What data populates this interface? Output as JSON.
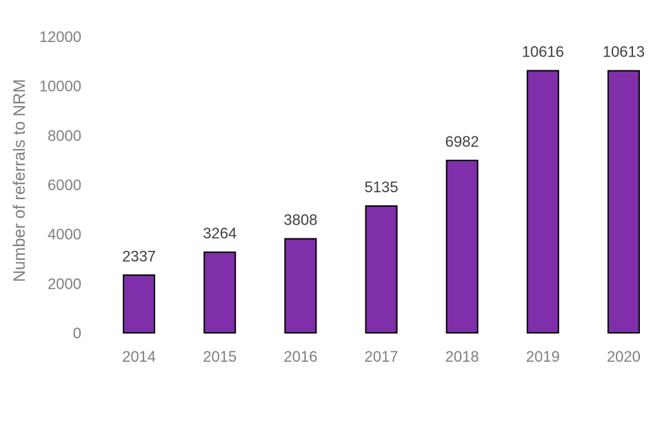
{
  "chart_data": {
    "type": "bar",
    "categories": [
      "2014",
      "2015",
      "2016",
      "2017",
      "2018",
      "2019",
      "2020"
    ],
    "values": [
      2337,
      3264,
      3808,
      5135,
      6982,
      10616,
      10613
    ],
    "data_labels": [
      "2337",
      "3264",
      "3808",
      "5135",
      "6982",
      "10616",
      "10613"
    ],
    "ylabel": "Number of referrals to NRM",
    "ylim": [
      0,
      12000
    ],
    "yticks": [
      "0",
      "2000",
      "4000",
      "6000",
      "8000",
      "10000",
      "12000"
    ],
    "grid": false,
    "legend": "none",
    "colors": {
      "bar_fill": "#7f2fa9",
      "bar_stroke": "#000000",
      "tick_text": "#7f7f7f",
      "label_text": "#404040"
    }
  }
}
